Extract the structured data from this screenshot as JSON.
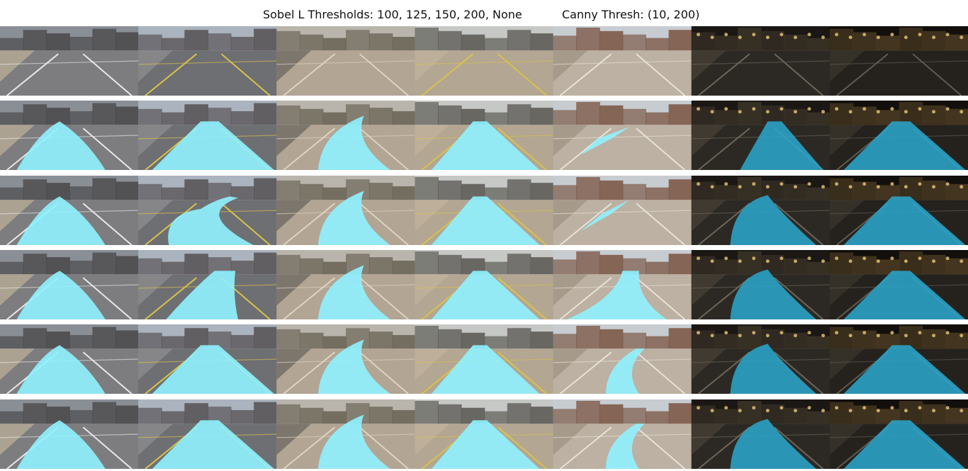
{
  "header": {
    "sobel_title": "Sobel L Thresholds: 100, 125, 150, 200, None",
    "canny_title": "Canny Thresh: (10, 200)"
  },
  "grid": {
    "rows": 6,
    "columns": 7,
    "row_kinds": [
      "original",
      "overlay",
      "overlay",
      "overlay",
      "overlay",
      "overlay"
    ],
    "scenes": [
      "gray-road-left-curve",
      "asphalt-yellow-lines",
      "beige-road-left",
      "beige-road-yellow-lines",
      "beige-road-right-curve",
      "night-road-left",
      "night-road-straight"
    ],
    "overlay_colors": {
      "day": "#8ff2ff",
      "night": "#2aa8cf"
    }
  }
}
